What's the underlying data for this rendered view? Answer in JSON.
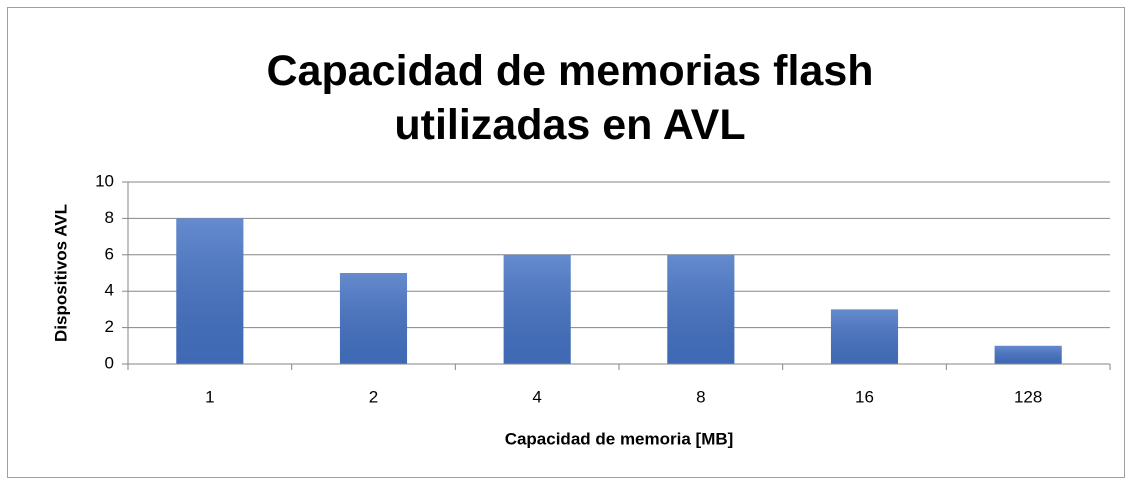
{
  "chart_data": {
    "type": "bar",
    "title": "Capacidad de memorias flash utilizadas en AVL",
    "x_label": "Capacidad de memoria [MB]",
    "y_label": "Dispositivos AVL",
    "categories": [
      "1",
      "2",
      "4",
      "8",
      "16",
      "128"
    ],
    "values": [
      8,
      5,
      6,
      6,
      3,
      1
    ],
    "color": "#4472c4",
    "ylim": [
      0,
      10
    ],
    "yticks": [
      0,
      2,
      4,
      6,
      8,
      10
    ],
    "grid": true
  }
}
